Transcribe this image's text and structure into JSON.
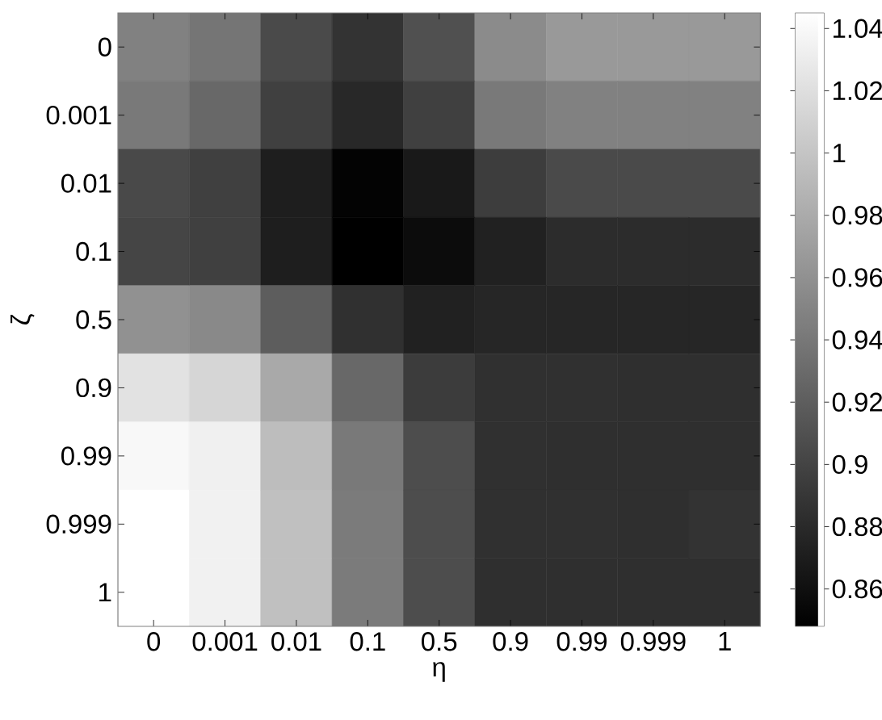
{
  "chart_data": {
    "type": "heatmap",
    "xlabel": "η",
    "ylabel": "ζ",
    "categories": [
      "0",
      "0.001",
      "0.01",
      "0.1",
      "0.5",
      "0.9",
      "0.99",
      "0.999",
      "1"
    ],
    "y_categories": [
      "0",
      "0.001",
      "0.01",
      "0.1",
      "0.5",
      "0.9",
      "0.99",
      "0.999",
      "1"
    ],
    "cells": [
      [
        0.947,
        0.938,
        0.905,
        0.887,
        0.909,
        0.955,
        0.965,
        0.965,
        0.965
      ],
      [
        0.941,
        0.928,
        0.897,
        0.879,
        0.897,
        0.941,
        0.947,
        0.947,
        0.947
      ],
      [
        0.904,
        0.897,
        0.871,
        0.85,
        0.867,
        0.895,
        0.905,
        0.905,
        0.905
      ],
      [
        0.901,
        0.897,
        0.871,
        0.848,
        0.857,
        0.873,
        0.882,
        0.882,
        0.882
      ],
      [
        0.959,
        0.953,
        0.919,
        0.885,
        0.873,
        0.877,
        0.877,
        0.877,
        0.877
      ],
      [
        1.021,
        1.012,
        0.978,
        0.928,
        0.894,
        0.885,
        0.885,
        0.884,
        0.884
      ],
      [
        1.038,
        1.032,
        0.993,
        0.941,
        0.907,
        0.885,
        0.884,
        0.884,
        0.884
      ],
      [
        1.045,
        1.033,
        0.995,
        0.942,
        0.907,
        0.885,
        0.885,
        0.884,
        0.887
      ],
      [
        1.045,
        1.033,
        0.995,
        0.942,
        0.907,
        0.884,
        0.884,
        0.884,
        0.884
      ]
    ],
    "clim": [
      0.848,
      1.045
    ],
    "cticks": [
      0.86,
      0.88,
      0.9,
      0.92,
      0.94,
      0.96,
      0.98,
      1,
      1.02,
      1.04
    ]
  }
}
